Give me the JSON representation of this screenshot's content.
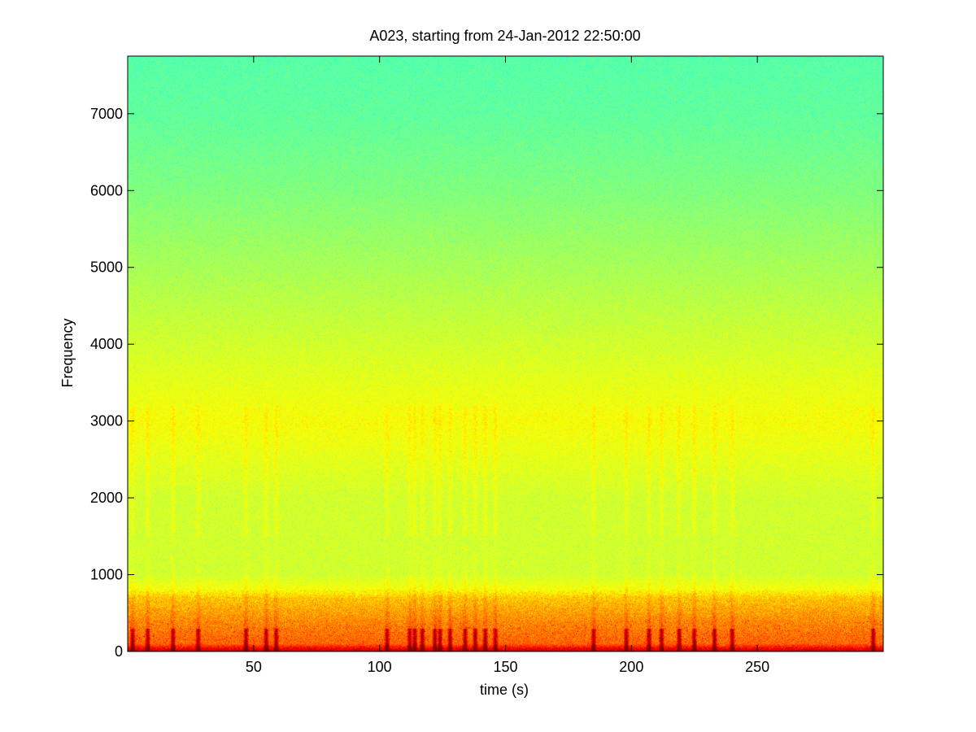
{
  "chart_data": {
    "type": "heatmap",
    "title": "A023, starting from 24-Jan-2012 22:50:00",
    "xlabel": "time (s)",
    "ylabel": "Frequency",
    "xlim": [
      0,
      300
    ],
    "ylim": [
      0,
      7750
    ],
    "x_ticks": [
      50,
      100,
      150,
      200,
      250
    ],
    "y_ticks": [
      0,
      1000,
      2000,
      3000,
      4000,
      5000,
      6000,
      7000
    ],
    "colormap": "jet",
    "grid": false,
    "legend": "none",
    "intensity_profile": {
      "frequency": [
        0,
        100,
        400,
        700,
        800,
        1000,
        2000,
        3000,
        4000,
        5000,
        6000,
        7000,
        7750
      ],
      "level": [
        0.95,
        0.78,
        0.74,
        0.68,
        0.62,
        0.58,
        0.58,
        0.62,
        0.58,
        0.54,
        0.5,
        0.47,
        0.46
      ]
    },
    "transient_events_s": [
      2,
      8,
      18,
      28,
      47,
      55,
      59,
      103,
      112,
      114,
      117,
      122,
      124,
      128,
      134,
      138,
      142,
      146,
      185,
      198,
      207,
      212,
      219,
      225,
      233,
      240,
      296
    ],
    "colors": {
      "background": "#ffffff",
      "axes": "#000000"
    }
  }
}
